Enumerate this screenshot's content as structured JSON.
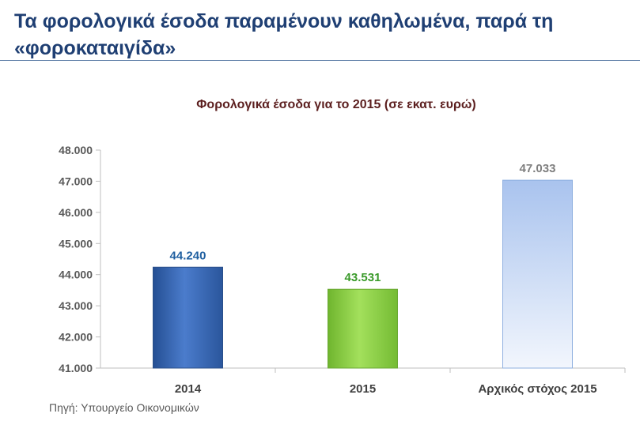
{
  "headline": "Τα φορολογικά έσοδα παραμένουν καθηλωμένα, παρά τη «φοροκαταιγίδα»",
  "source": "Πηγή:  Υπουργείο Οικονομικών",
  "colors": {
    "headline": "#1f3f73",
    "chart_title": "#5c1f1f",
    "bar_2014": "#3a68b5",
    "bar_2015": "#8fd24a",
    "bar_target": "#b9cff0",
    "label_2014": "#1f5fa0",
    "label_2015": "#3a9a2a",
    "label_target": "#7f7f7f"
  },
  "chart_data": {
    "type": "bar",
    "title": "Φορολογικά έσοδα για το 2015 (σε εκατ. ευρώ)",
    "xlabel": "",
    "ylabel": "",
    "categories": [
      "2014",
      "2015",
      "Αρχικός στόχος 2015"
    ],
    "values": [
      44240,
      43531,
      47033
    ],
    "value_labels": [
      "44.240",
      "43.531",
      "47.033"
    ],
    "ylim": [
      41000,
      48000
    ],
    "yticks": [
      41000,
      42000,
      43000,
      44000,
      45000,
      46000,
      47000,
      48000
    ],
    "ytick_labels": [
      "41.000",
      "42.000",
      "43.000",
      "44.000",
      "45.000",
      "46.000",
      "47.000",
      "48.000"
    ],
    "grid": false,
    "legend": "none"
  }
}
